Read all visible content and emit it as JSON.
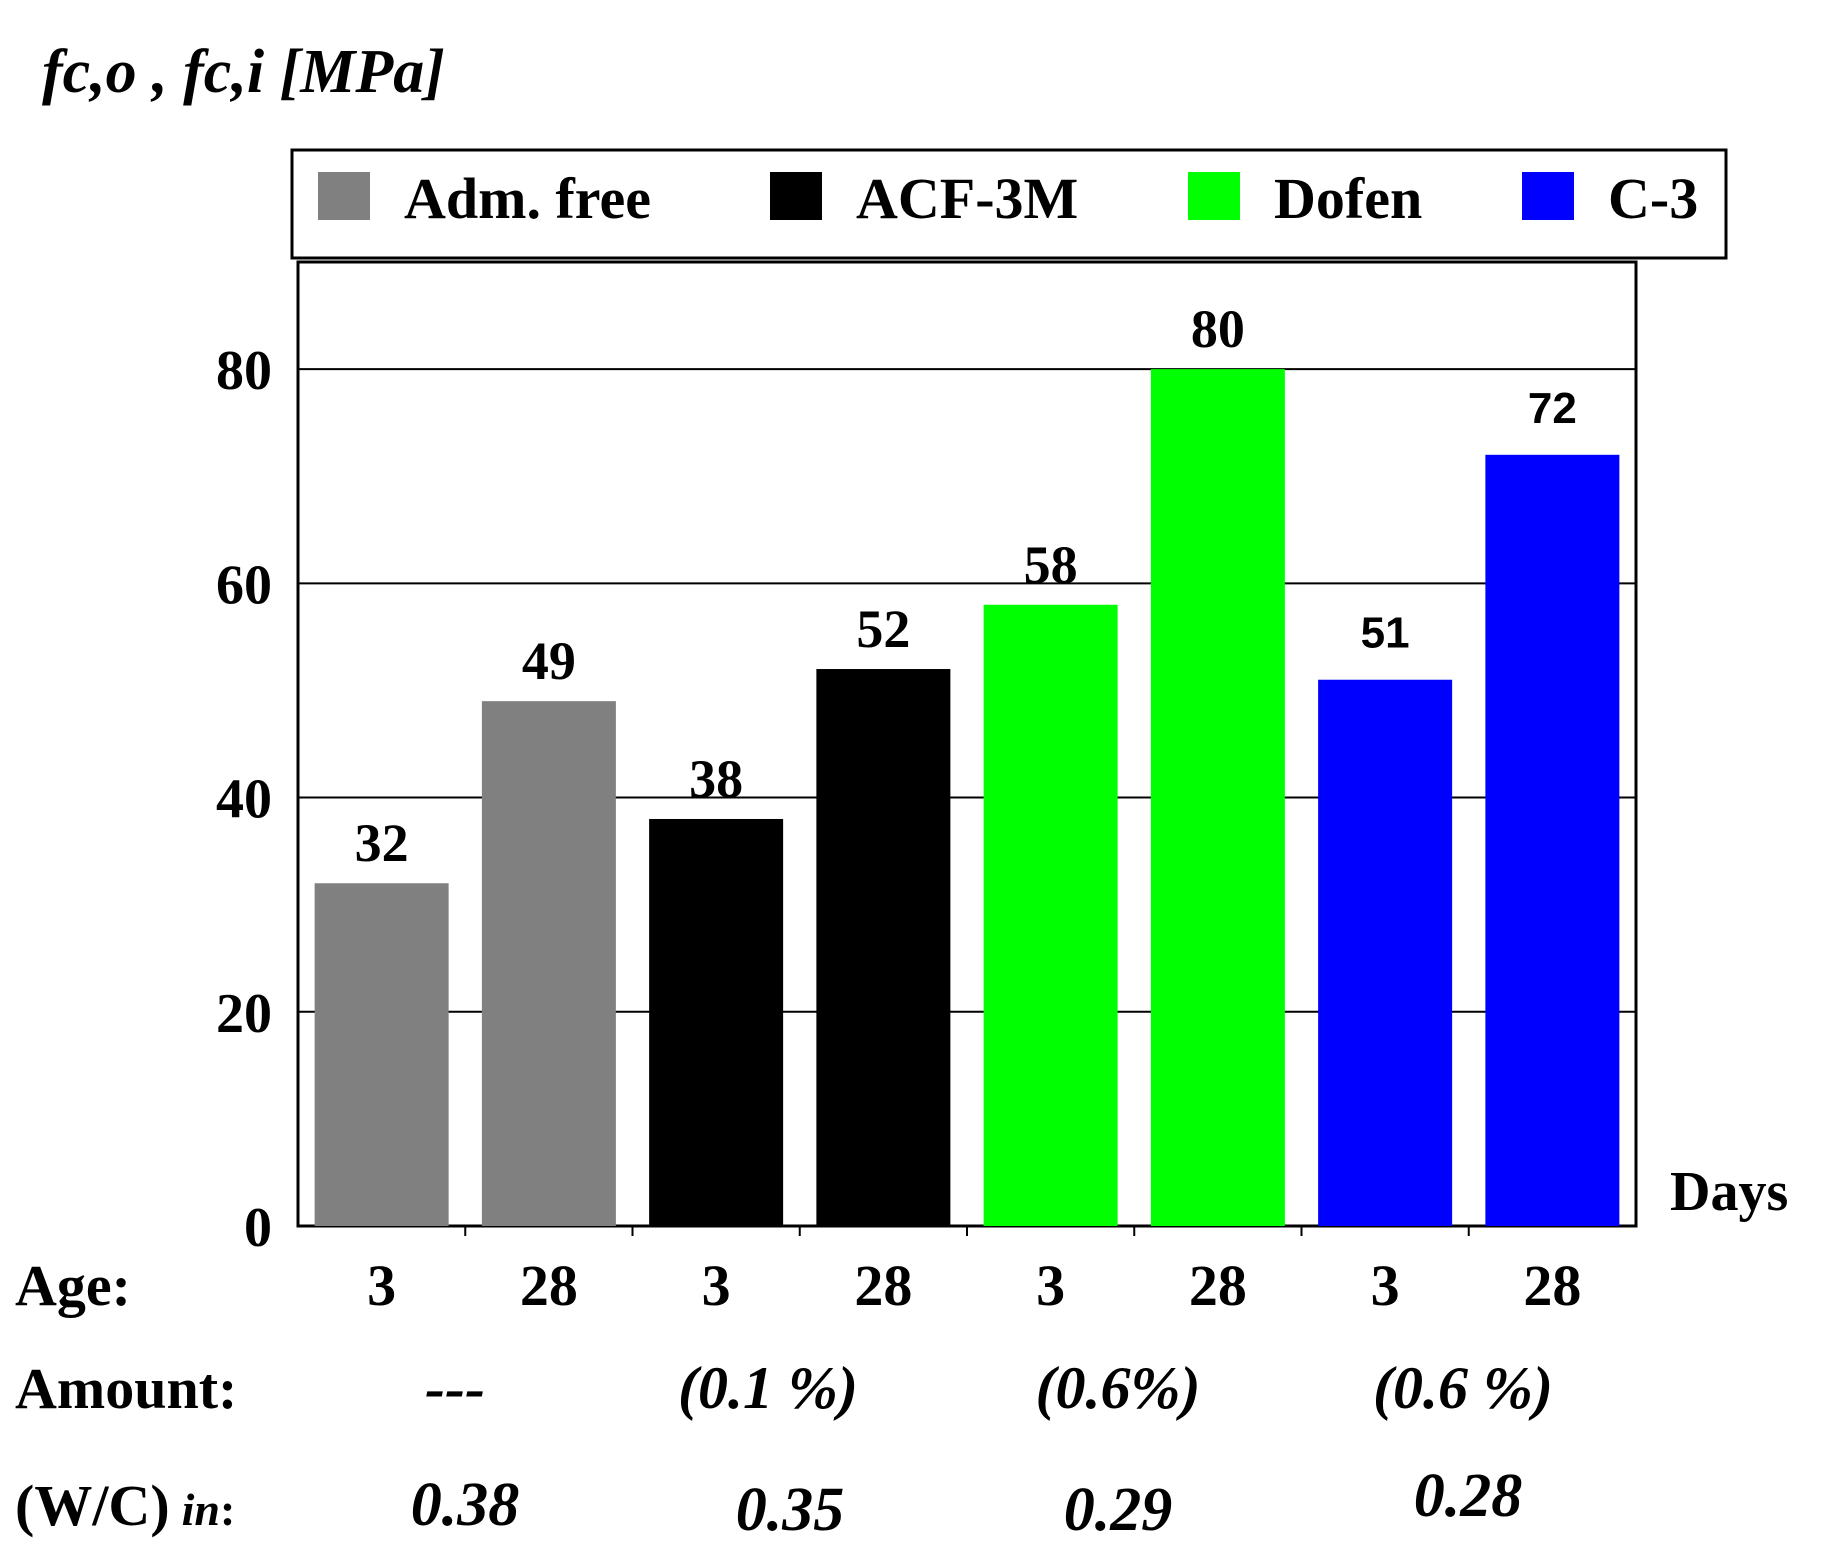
{
  "chart_data": {
    "type": "bar",
    "title": "fc,o , fc,i   [MPa]",
    "ylabel": "fc,o , fc,i   [MPa]",
    "xlabel": "Days",
    "ylim": [
      0,
      90
    ],
    "yticks": [
      0,
      20,
      40,
      60,
      80
    ],
    "grid": true,
    "legend_position": "top",
    "series": [
      {
        "name": "Adm. free",
        "color": "#808080",
        "ages": [
          "3",
          "28"
        ],
        "values": [
          32,
          49
        ],
        "value_labels": [
          "32",
          "49"
        ]
      },
      {
        "name": "ACF-3M",
        "color": "#000000",
        "ages": [
          "3",
          "28"
        ],
        "values": [
          38,
          52
        ],
        "value_labels": [
          "38",
          "52"
        ]
      },
      {
        "name": "Dofen",
        "color": "#00ff00",
        "ages": [
          "3",
          "28"
        ],
        "values": [
          58,
          80
        ],
        "value_labels": [
          "58",
          "80"
        ]
      },
      {
        "name": "C-3",
        "color": "#0000ff",
        "ages": [
          "3",
          "28"
        ],
        "values": [
          51,
          72
        ],
        "value_labels": [
          "51",
          "72"
        ]
      }
    ],
    "row_labels": {
      "age": "Age:",
      "amount": "Amount:",
      "wc_main": "(W/C)",
      "wc_suffix": "in",
      "wc_colon": ":"
    },
    "amounts": [
      "---",
      "(0.1 %)",
      "(0.6%)",
      "(0.6 %)"
    ],
    "wc_ratios": [
      "0.38",
      "0.35",
      "0.29",
      "0.28"
    ]
  }
}
